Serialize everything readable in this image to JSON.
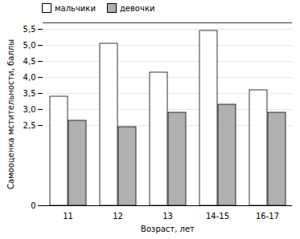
{
  "chart_data": {
    "type": "bar",
    "categories": [
      "11",
      "12",
      "13",
      "14-15",
      "16-17"
    ],
    "series": [
      {
        "name": "мальчики",
        "color": "white",
        "values": [
          3.4,
          5.05,
          4.15,
          5.45,
          3.6
        ]
      },
      {
        "name": "девочки",
        "color": "#b0b0b0",
        "values": [
          2.65,
          2.45,
          2.9,
          3.15,
          2.9
        ]
      }
    ],
    "xlabel": "Возраст, лет",
    "ylabel": "Самооценка мстительности, баллы",
    "ylim": [
      0,
      5.7
    ],
    "yticks": [
      0,
      {
        "value": 2.5,
        "label": "2,5"
      },
      {
        "value": 3.0,
        "label": "3,0"
      },
      {
        "value": 3.5,
        "label": "3,5"
      },
      {
        "value": 4.0,
        "label": "4,0"
      },
      {
        "value": 4.5,
        "label": "4,5"
      },
      {
        "value": 5.0,
        "label": "5,0"
      },
      {
        "value": 5.5,
        "label": "5,5"
      }
    ],
    "grid": true,
    "legend": "upper left"
  }
}
